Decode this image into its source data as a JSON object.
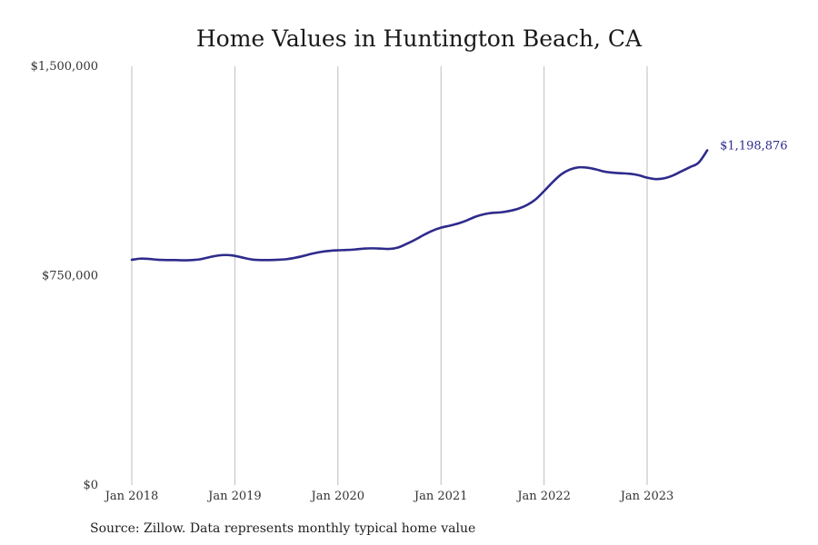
{
  "chart_data": {
    "type": "line",
    "title": "Home Values in Huntington Beach, CA",
    "xlabel": "",
    "ylabel": "",
    "source": "Source: Zillow. Data represents monthly typical home value",
    "ylim": [
      0,
      1500000
    ],
    "y_ticks": [
      {
        "value": 0,
        "label": "$0"
      },
      {
        "value": 750000,
        "label": "$750,000"
      },
      {
        "value": 1500000,
        "label": "$1,500,000"
      }
    ],
    "x_ticks": [
      {
        "value": "2018-01",
        "label": "Jan 2018"
      },
      {
        "value": "2019-01",
        "label": "Jan 2019"
      },
      {
        "value": "2020-01",
        "label": "Jan 2020"
      },
      {
        "value": "2021-01",
        "label": "Jan 2021"
      },
      {
        "value": "2022-01",
        "label": "Jan 2022"
      },
      {
        "value": "2023-01",
        "label": "Jan 2023"
      }
    ],
    "grid": {
      "vertical": true,
      "horizontal": false
    },
    "line_color": "#2e2b8c",
    "end_label": "$1,198,876",
    "series": [
      {
        "x": [
          "2018-01",
          "2018-02",
          "2018-03",
          "2018-04",
          "2018-05",
          "2018-06",
          "2018-07",
          "2018-08",
          "2018-09",
          "2018-10",
          "2018-11",
          "2018-12",
          "2019-01",
          "2019-02",
          "2019-03",
          "2019-04",
          "2019-05",
          "2019-06",
          "2019-07",
          "2019-08",
          "2019-09",
          "2019-10",
          "2019-11",
          "2019-12",
          "2020-01",
          "2020-02",
          "2020-03",
          "2020-04",
          "2020-05",
          "2020-06",
          "2020-07",
          "2020-08",
          "2020-09",
          "2020-10",
          "2020-11",
          "2020-12",
          "2021-01",
          "2021-02",
          "2021-03",
          "2021-04",
          "2021-05",
          "2021-06",
          "2021-07",
          "2021-08",
          "2021-09",
          "2021-10",
          "2021-11",
          "2021-12",
          "2022-01",
          "2022-02",
          "2022-03",
          "2022-04",
          "2022-05",
          "2022-06",
          "2022-07",
          "2022-08",
          "2022-09",
          "2022-10",
          "2022-11",
          "2022-12",
          "2023-01",
          "2023-02",
          "2023-03",
          "2023-04",
          "2023-05",
          "2023-06",
          "2023-07",
          "2023-08"
        ],
        "values": [
          807000,
          811000,
          810000,
          807000,
          806000,
          806000,
          805000,
          806000,
          809000,
          816000,
          822000,
          824000,
          821000,
          814000,
          808000,
          806000,
          806000,
          807000,
          809000,
          814000,
          821000,
          829000,
          835000,
          839000,
          841000,
          842000,
          844000,
          847000,
          848000,
          847000,
          846000,
          851000,
          864000,
          879000,
          896000,
          911000,
          922000,
          929000,
          937000,
          948000,
          961000,
          970000,
          975000,
          977000,
          982000,
          990000,
          1003000,
          1023000,
          1053000,
          1085000,
          1113000,
          1130000,
          1138000,
          1137000,
          1131000,
          1123000,
          1119000,
          1117000,
          1115000,
          1110000,
          1101000,
          1096000,
          1099000,
          1109000,
          1124000,
          1139000,
          1155000,
          1198876
        ]
      }
    ]
  }
}
